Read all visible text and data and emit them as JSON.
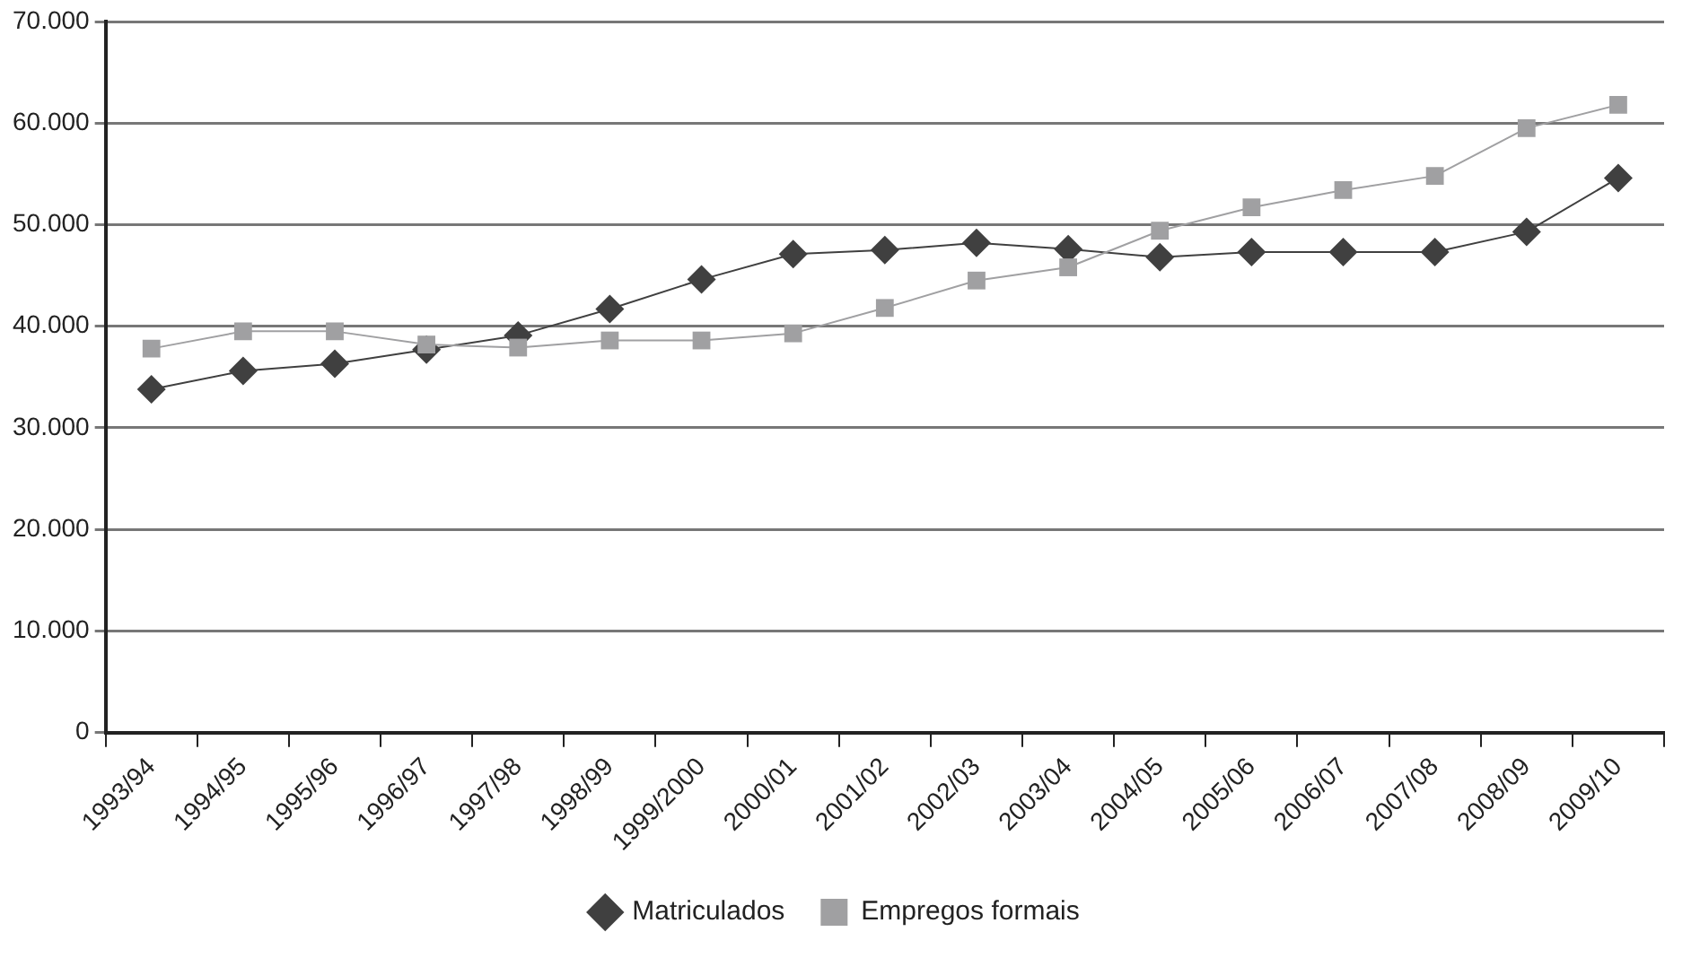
{
  "chart_data": {
    "type": "line",
    "categories": [
      "1993/94",
      "1994/95",
      "1995/96",
      "1996/97",
      "1997/98",
      "1998/99",
      "1999/2000",
      "2000/01",
      "2001/02",
      "2002/03",
      "2003/04",
      "2004/05",
      "2005/06",
      "2006/07",
      "2007/08",
      "2008/09",
      "2009/10"
    ],
    "series": [
      {
        "name": "Matriculados",
        "color": "#404040",
        "marker": "diamond",
        "values": [
          33800,
          35600,
          36300,
          37700,
          39100,
          41700,
          44600,
          47100,
          47500,
          48200,
          47600,
          46800,
          47300,
          47300,
          47300,
          49300,
          54600
        ]
      },
      {
        "name": "Empregos formais",
        "color": "#a0a0a2",
        "marker": "square",
        "values": [
          37800,
          39500,
          39500,
          38200,
          37900,
          38600,
          38600,
          39300,
          41800,
          44500,
          45800,
          49400,
          51700,
          53400,
          54800,
          59500,
          61800
        ]
      }
    ],
    "ylim": [
      0,
      70000
    ],
    "yticks": [
      {
        "value": 0,
        "label": "0"
      },
      {
        "value": 10000,
        "label": "10.000"
      },
      {
        "value": 20000,
        "label": "20.000"
      },
      {
        "value": 30000,
        "label": "30.000"
      },
      {
        "value": 40000,
        "label": "40.000"
      },
      {
        "value": 50000,
        "label": "50.000"
      },
      {
        "value": 60000,
        "label": "60.000"
      },
      {
        "value": 70000,
        "label": "70.000"
      }
    ],
    "grid": "y",
    "legend": "bottom",
    "line_style": "solid"
  }
}
